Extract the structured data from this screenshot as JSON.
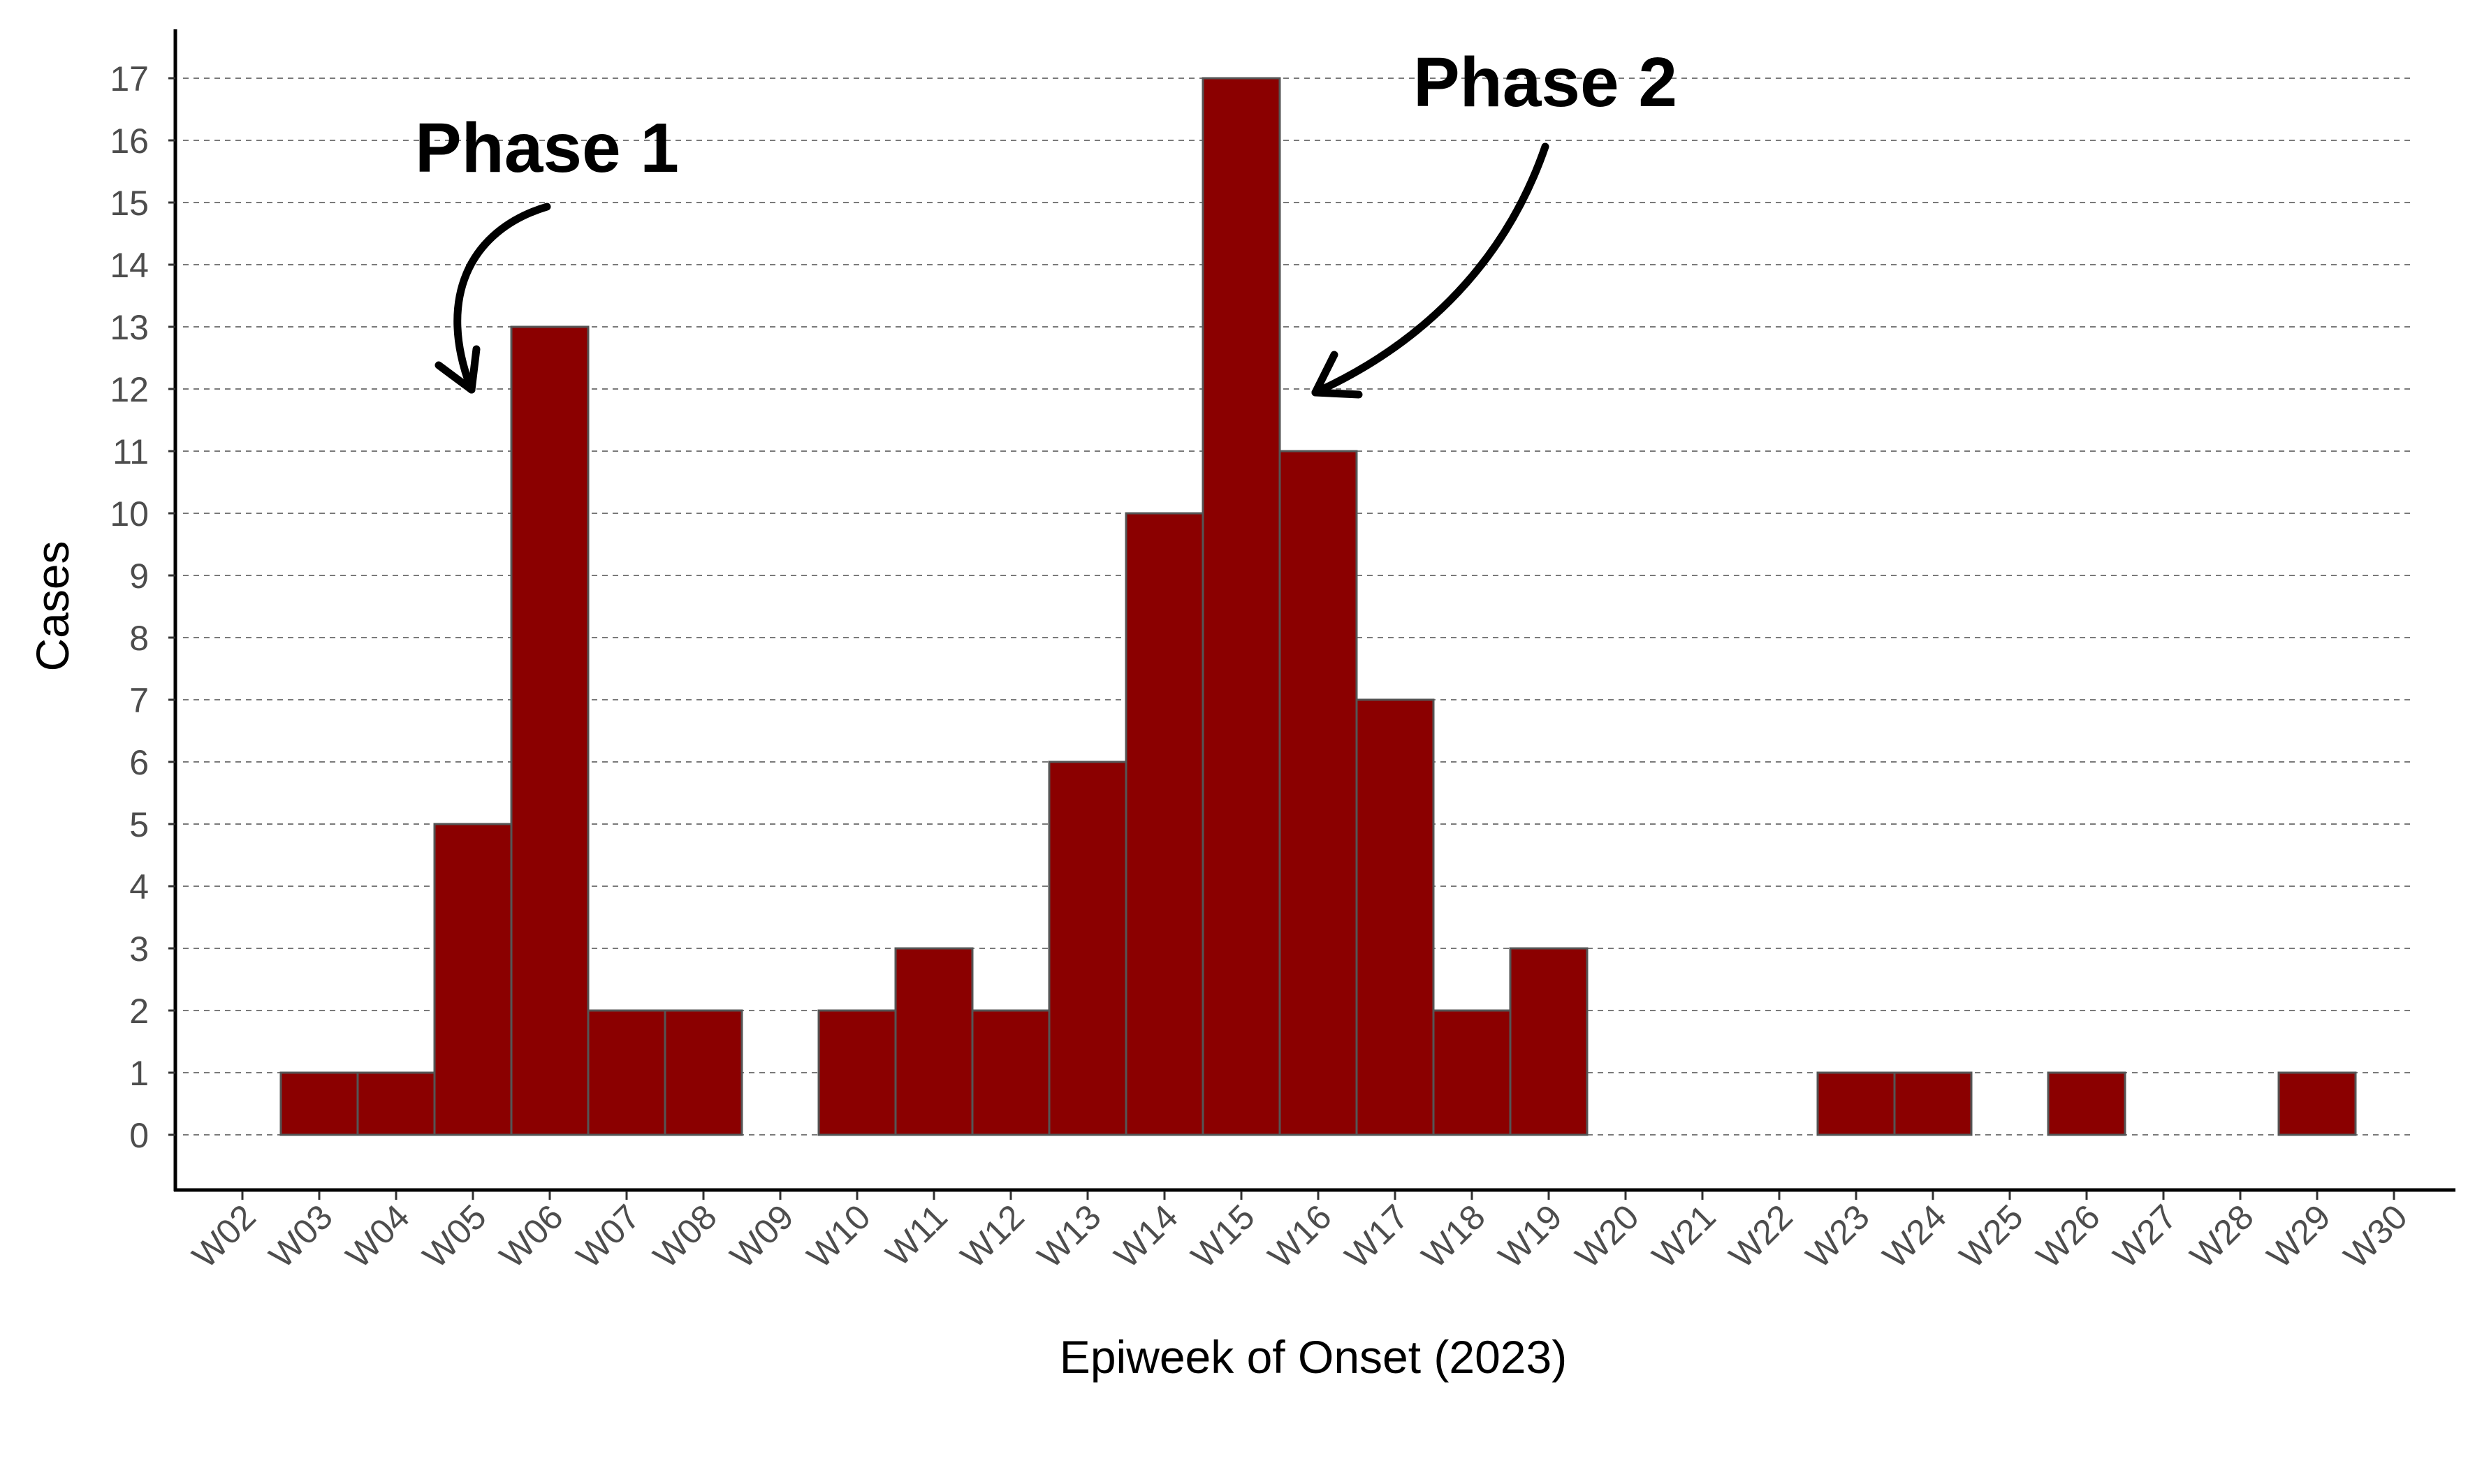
{
  "chart_data": {
    "type": "bar",
    "title": "",
    "xlabel": "Epiweek of Onset (2023)",
    "ylabel": "Cases",
    "ylim": [
      0,
      17
    ],
    "yticks": [
      0,
      1,
      2,
      3,
      4,
      5,
      6,
      7,
      8,
      9,
      10,
      11,
      12,
      13,
      14,
      15,
      16,
      17
    ],
    "grid": "horizontal dashed",
    "bar_color": "#8B0000",
    "categories": [
      "W02",
      "W03",
      "W04",
      "W05",
      "W06",
      "W07",
      "W08",
      "W09",
      "W10",
      "W11",
      "W12",
      "W13",
      "W14",
      "W15",
      "W16",
      "W17",
      "W18",
      "W19",
      "W20",
      "W21",
      "W22",
      "W23",
      "W24",
      "W25",
      "W26",
      "W27",
      "W28",
      "W29",
      "W30"
    ],
    "values": [
      0,
      1,
      1,
      5,
      13,
      2,
      2,
      0,
      2,
      3,
      2,
      6,
      10,
      17,
      11,
      7,
      2,
      3,
      0,
      0,
      0,
      1,
      1,
      0,
      1,
      0,
      0,
      1,
      0
    ],
    "annotations": [
      {
        "label": "Phase 1",
        "points_to": "W05"
      },
      {
        "label": "Phase 2",
        "points_to": "W16"
      }
    ]
  }
}
